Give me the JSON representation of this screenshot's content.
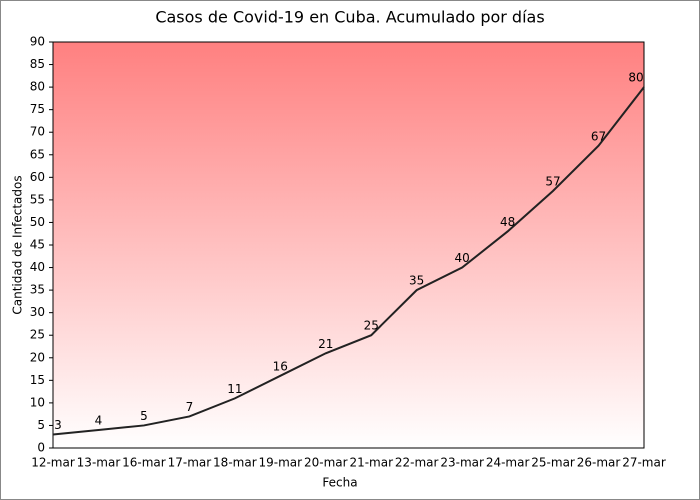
{
  "chart_data": {
    "type": "line",
    "title": "Casos de Covid-19 en Cuba. Acumulado por días",
    "x_label": "Fecha",
    "y_label": "Cantidad de Infectados",
    "categories": [
      "12-mar",
      "13-mar",
      "16-mar",
      "17-mar",
      "18-mar",
      "19-mar",
      "20-mar",
      "21-mar",
      "22-mar",
      "23-mar",
      "24-mar",
      "25-mar",
      "26-mar",
      "27-mar"
    ],
    "values": [
      3,
      4,
      5,
      7,
      11,
      16,
      21,
      25,
      35,
      40,
      48,
      57,
      67,
      80
    ],
    "color": "#222222",
    "background_gradient": [
      "#ff8080",
      "#ffffff"
    ],
    "ylim": [
      0,
      90
    ],
    "yticks": [
      0,
      5,
      10,
      15,
      20,
      25,
      30,
      35,
      40,
      45,
      50,
      55,
      60,
      65,
      70,
      75,
      80,
      85,
      90
    ],
    "grid": false
  }
}
